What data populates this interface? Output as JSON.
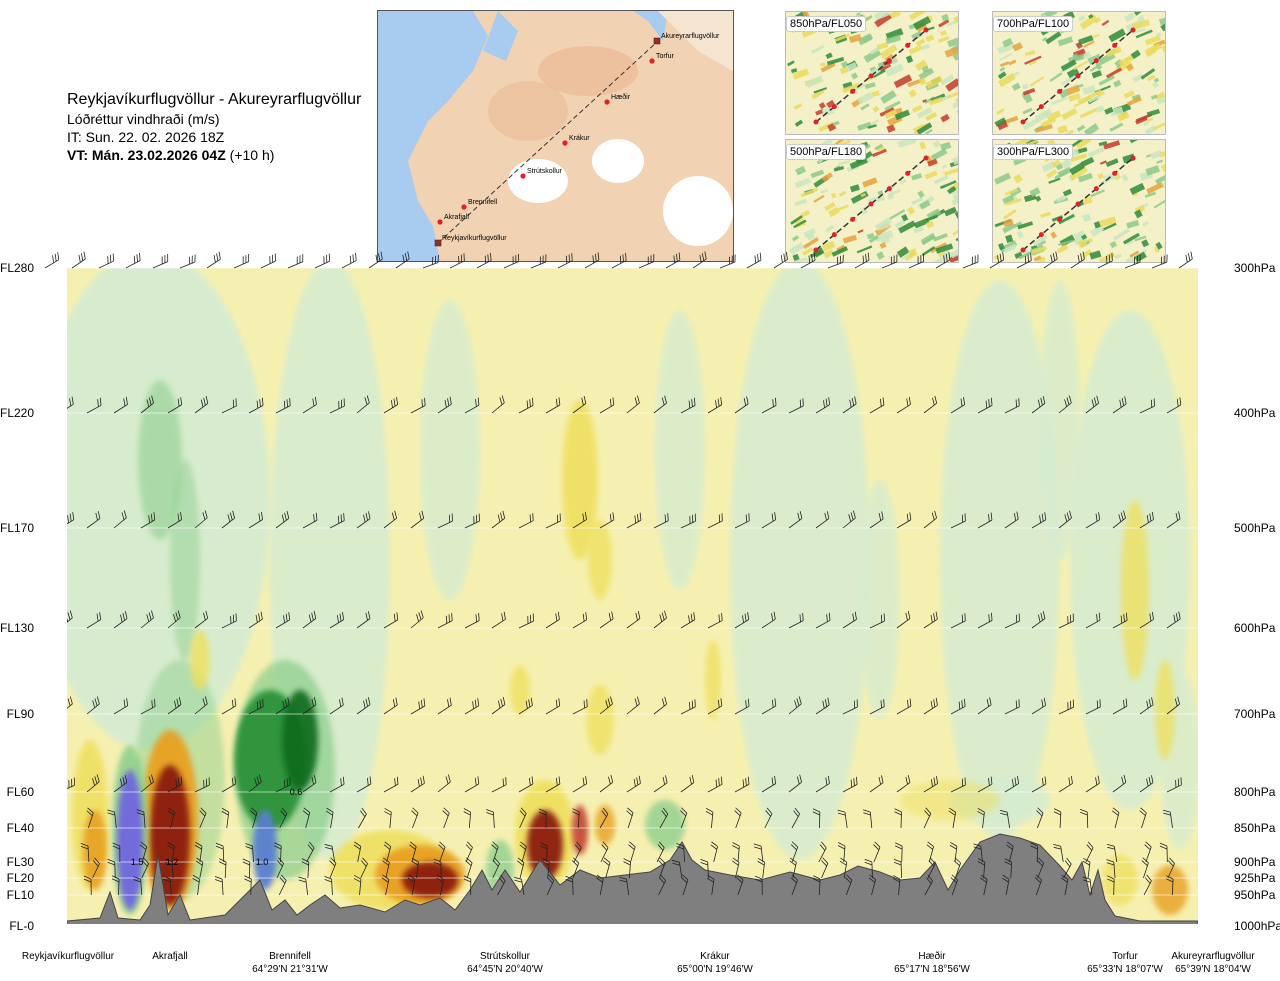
{
  "header": {
    "route": "Reykjavíkurflugvöllur - Akureyrarflugvöllur",
    "variable": "Lóðréttur vindhraði (m/s)",
    "issue_time": "IT: Sun. 22. 02. 2026 18Z",
    "valid_time_bold": "VT: Mán. 23.02.2026 04Z",
    "valid_time_offset": "(+10 h)"
  },
  "map": {
    "points": [
      "Akureyrarflugvöllur",
      "Torfur",
      "Hæðir",
      "Krákur",
      "Strútskollur",
      "Brennifell",
      "Akrafjall",
      "Reykjavíkurflugvöllur"
    ]
  },
  "insets": [
    {
      "label": "850hPa/FL050"
    },
    {
      "label": "700hPa/FL100"
    },
    {
      "label": "500hPa/FL180"
    },
    {
      "label": "300hPa/FL300"
    }
  ],
  "colors": {
    "strong_up_blue": "#6f66e0",
    "up_blue": "#5a7fd0",
    "down_darkred": "#8b1a10",
    "down_red": "#c0392b",
    "orange": "#e8a020",
    "yellow": "#efe060",
    "pale_yellow": "#f6f0b0",
    "pale_green": "#d6ecd0",
    "green": "#8fcf8f",
    "dark_green": "#1e8a2e",
    "terrain": "#7f7f7f"
  },
  "chart_data": {
    "type": "heatmap",
    "title": "Lóðréttur vindhraði (m/s)",
    "y_axis_left": [
      "FL280",
      "FL220",
      "FL170",
      "FL130",
      "FL90",
      "FL60",
      "FL40",
      "FL30",
      "FL20",
      "FL10",
      "FL-0"
    ],
    "y_axis_right": [
      "300hPa",
      "400hPa",
      "500hPa",
      "600hPa",
      "700hPa",
      "800hPa",
      "850hPa",
      "900hPa",
      "925hPa",
      "950hPa",
      "1000hPa"
    ],
    "locations": [
      {
        "name": "Reykjavíkurflugvöllur",
        "coord": ""
      },
      {
        "name": "Akrafjall",
        "coord": ""
      },
      {
        "name": "Brennifell",
        "coord": "64°29'N 21°31'W"
      },
      {
        "name": "Strútskollur",
        "coord": "64°45'N 20°40'W"
      },
      {
        "name": "Krákur",
        "coord": "65°00'N 19°46'W"
      },
      {
        "name": "Hæðir",
        "coord": "65°17'N 18°56'W"
      },
      {
        "name": "Torfur",
        "coord": "65°33'N 18°07'W"
      },
      {
        "name": "Akureyrarflugvöllur",
        "coord": "65°39'N 18°04'W"
      }
    ],
    "value_labels": [
      "1.5",
      "1.2",
      "1.0",
      "0.6"
    ]
  }
}
